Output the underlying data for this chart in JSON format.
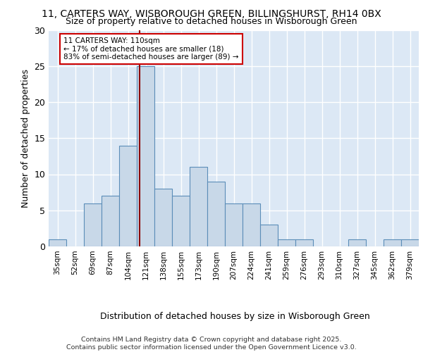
{
  "title1": "11, CARTERS WAY, WISBOROUGH GREEN, BILLINGSHURST, RH14 0BX",
  "title2": "Size of property relative to detached houses in Wisborough Green",
  "xlabel": "Distribution of detached houses by size in Wisborough Green",
  "ylabel": "Number of detached properties",
  "bins": [
    "35sqm",
    "52sqm",
    "69sqm",
    "87sqm",
    "104sqm",
    "121sqm",
    "138sqm",
    "155sqm",
    "173sqm",
    "190sqm",
    "207sqm",
    "224sqm",
    "241sqm",
    "259sqm",
    "276sqm",
    "293sqm",
    "310sqm",
    "327sqm",
    "345sqm",
    "362sqm",
    "379sqm"
  ],
  "counts": [
    1,
    0,
    6,
    7,
    14,
    25,
    8,
    7,
    11,
    9,
    6,
    6,
    3,
    1,
    1,
    0,
    0,
    1,
    0,
    1,
    1
  ],
  "bar_color": "#c8d8e8",
  "bar_edge_color": "#5b8db8",
  "vline_x_index": 4.65,
  "vline_color": "#8b0000",
  "annotation_text": "11 CARTERS WAY: 110sqm\n← 17% of detached houses are smaller (18)\n83% of semi-detached houses are larger (89) →",
  "annotation_box_color": "white",
  "annotation_box_edge": "#cc0000",
  "ylim": [
    0,
    30
  ],
  "yticks": [
    0,
    5,
    10,
    15,
    20,
    25,
    30
  ],
  "background_color": "#dce8f5",
  "footer": "Contains HM Land Registry data © Crown copyright and database right 2025.\nContains public sector information licensed under the Open Government Licence v3.0."
}
